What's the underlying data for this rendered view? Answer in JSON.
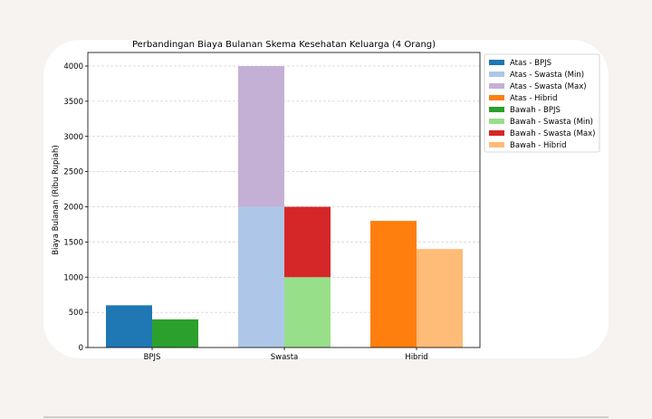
{
  "chart_data": {
    "type": "bar",
    "title": "Perbandingan Biaya Bulanan Skema Kesehatan Keluarga (4 Orang)",
    "xlabel": "",
    "ylabel": "Biaya Bulanan (Ribu Rupiah)",
    "ylim": [
      0,
      4200
    ],
    "yticks": [
      0,
      500,
      1000,
      1500,
      2000,
      2500,
      3000,
      3500,
      4000
    ],
    "grid": "y-dashed",
    "legend_position": "outside-right",
    "categories": [
      "BPJS",
      "Swasta",
      "Hibrid"
    ],
    "series": [
      {
        "name": "Atas - BPJS",
        "color": "#1f77b4",
        "category": "BPJS",
        "position": "left",
        "base": 0,
        "value": 600
      },
      {
        "name": "Atas - Swasta (Min)",
        "color": "#aec7e8",
        "category": "Swasta",
        "position": "left",
        "base": 0,
        "value": 2000
      },
      {
        "name": "Atas - Swasta (Max)",
        "color": "#c5b0d5",
        "category": "Swasta",
        "position": "left",
        "base": 2000,
        "value": 4000
      },
      {
        "name": "Atas - Hibrid",
        "color": "#ff7f0e",
        "category": "Hibrid",
        "position": "left",
        "base": 0,
        "value": 1800
      },
      {
        "name": "Bawah - BPJS",
        "color": "#2ca02c",
        "category": "BPJS",
        "position": "right",
        "base": 0,
        "value": 400
      },
      {
        "name": "Bawah - Swasta (Min)",
        "color": "#98df8a",
        "category": "Swasta",
        "position": "right",
        "base": 0,
        "value": 1000
      },
      {
        "name": "Bawah - Swasta (Max)",
        "color": "#d62728",
        "category": "Swasta",
        "position": "right",
        "base": 1000,
        "value": 2000
      },
      {
        "name": "Bawah - Hibrid",
        "color": "#ffbb78",
        "category": "Hibrid",
        "position": "right",
        "base": 0,
        "value": 1400
      }
    ]
  }
}
